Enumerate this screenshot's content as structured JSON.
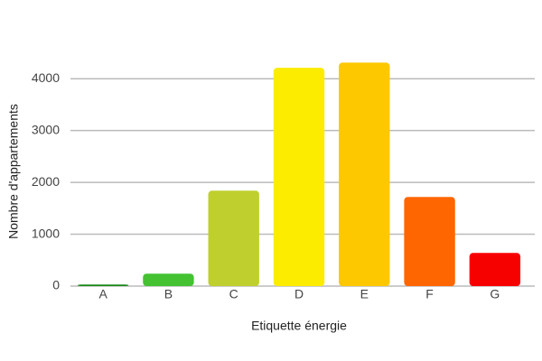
{
  "chart_data": {
    "type": "bar",
    "x_label": "Etiquette énergie",
    "y_label": "Nombre d'appartements",
    "categories": [
      "A",
      "B",
      "C",
      "D",
      "E",
      "F",
      "G"
    ],
    "values": [
      30,
      240,
      1840,
      4210,
      4310,
      1720,
      640
    ],
    "colors": [
      "#1a8a1a",
      "#44c232",
      "#bfcf2e",
      "#fbec00",
      "#fdc800",
      "#fd6600",
      "#f70000"
    ],
    "ylim": [
      0,
      4700
    ],
    "yticks": [
      0,
      1000,
      2000,
      3000,
      4000
    ],
    "grid": true
  }
}
